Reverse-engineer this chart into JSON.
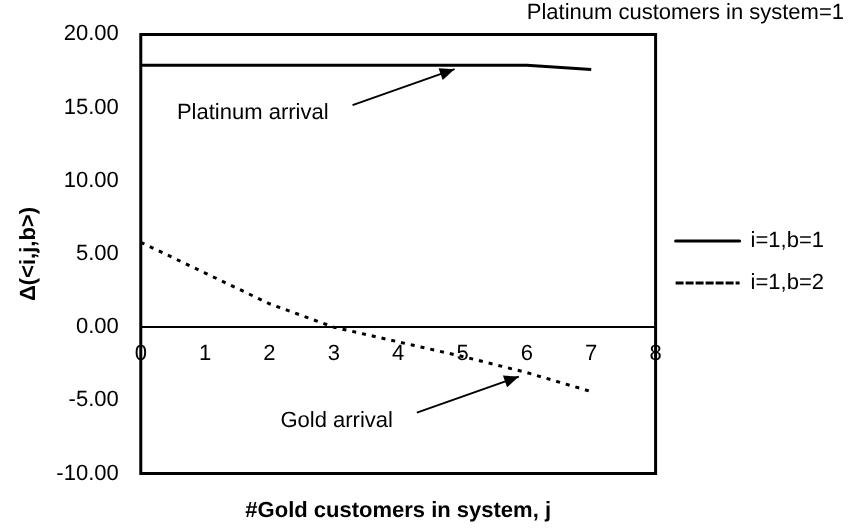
{
  "chart_data": {
    "type": "line",
    "title": "Platinum customers in system=1",
    "xlabel": "#Gold customers in system, j",
    "ylabel": "Δ(<i,j,b>)",
    "x": [
      0,
      1,
      2,
      3,
      4,
      5,
      6,
      7
    ],
    "series": [
      {
        "name": "i=1,b=1",
        "color": "#000000",
        "line_style": "solid",
        "values": [
          17.9,
          17.9,
          17.9,
          17.9,
          17.9,
          17.9,
          17.9,
          17.6
        ]
      },
      {
        "name": "i=1,b=2",
        "color": "#000000",
        "line_style": "dotted",
        "values": [
          5.8,
          3.7,
          1.6,
          0.0,
          -1.0,
          -2.0,
          -3.1,
          -4.4
        ]
      }
    ],
    "xlim": [
      0,
      8
    ],
    "xticks": [
      0,
      1,
      2,
      3,
      4,
      5,
      6,
      7,
      8
    ],
    "ylim": [
      -10,
      20
    ],
    "yticks": [
      {
        "value": -10,
        "label": "-10.00"
      },
      {
        "value": -5,
        "label": "-5.00"
      },
      {
        "value": 0,
        "label": "0.00"
      },
      {
        "value": 5,
        "label": "5.00"
      },
      {
        "value": 10,
        "label": "10.00"
      },
      {
        "value": 15,
        "label": "15.00"
      },
      {
        "value": 20,
        "label": "20.00"
      }
    ],
    "annotations": [
      {
        "text": "Platinum arrival",
        "x": 5,
        "y": 17.9
      },
      {
        "text": "Gold arrival",
        "x": 6,
        "y": -3.1
      }
    ],
    "legend": "right",
    "marker": "none",
    "grid": false
  }
}
